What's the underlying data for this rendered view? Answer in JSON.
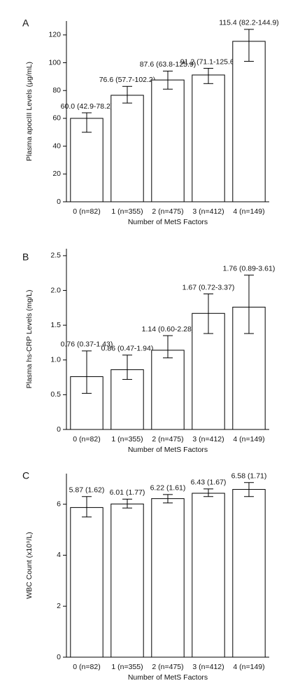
{
  "chart_data": [
    {
      "type": "bar",
      "title": "A",
      "y_label": "Plasma apocIII Levels (μg/mL)",
      "x_label": "Number of MetS Factors",
      "categories": [
        "0 (n=82)",
        "1 (n=355)",
        "2 (n=475)",
        "3 (n=412)",
        "4 (n=149)"
      ],
      "values": [
        60.0,
        76.6,
        87.6,
        91.2,
        115.4
      ],
      "value_labels": [
        "60.0 (42.9-78.2)",
        "76.6 (57.7-102.2)",
        "87.6 (63.8-125.9)",
        "91.2 (71.1-125.6)",
        "115.4 (82.2-144.9)"
      ],
      "errors_lower": [
        50,
        71,
        81,
        85,
        101
      ],
      "errors_upper": [
        64,
        83,
        94,
        96,
        124
      ],
      "color": "#ffffff",
      "ylim": [
        0,
        130
      ],
      "yticks": [
        0,
        20,
        40,
        60,
        80,
        100,
        120
      ]
    },
    {
      "type": "bar",
      "title": "B",
      "y_label": "Plasma hs-CRP Levels (mg/L)",
      "x_label": "Number of MetS Factors",
      "categories": [
        "0 (n=82)",
        "1 (n=355)",
        "2 (n=475)",
        "3 (n=412)",
        "4 (n=149)"
      ],
      "values": [
        0.76,
        0.86,
        1.14,
        1.67,
        1.76
      ],
      "value_labels": [
        "0.76 (0.37-1.43)",
        "0.86 (0.47-1.94)",
        "1.14 (0.60-2.28)",
        "1.67 (0.72-3.37)",
        "1.76 (0.89-3.61)"
      ],
      "errors_lower": [
        0.52,
        0.72,
        1.03,
        1.38,
        1.38
      ],
      "errors_upper": [
        1.13,
        1.07,
        1.35,
        1.95,
        2.22
      ],
      "color": "#ffffff",
      "ylim": [
        0,
        2.6
      ],
      "yticks": [
        0,
        0.5,
        {
          "value": 1,
          "label": "1.0"
        },
        1.5,
        {
          "value": 2,
          "label": "2.0"
        },
        2.5
      ]
    },
    {
      "type": "bar",
      "title": "C",
      "y_label": "WBC Count (x10⁹/L)",
      "x_label": "Number of MetS Factors",
      "categories": [
        "0 (n=82)",
        "1 (n=355)",
        "2 (n=475)",
        "3 (n=412)",
        "4 (n=149)"
      ],
      "values": [
        5.87,
        6.01,
        6.22,
        6.43,
        6.58
      ],
      "value_labels": [
        "5.87 (1.62)",
        "6.01 (1.77)",
        "6.22 (1.61)",
        "6.43 (1.67)",
        "6.58 (1.71)"
      ],
      "errors_lower": [
        5.5,
        5.85,
        6.05,
        6.3,
        6.3
      ],
      "errors_upper": [
        6.3,
        6.2,
        6.38,
        6.6,
        6.85
      ],
      "color": "#ffffff",
      "ylim": [
        0,
        7.2
      ],
      "yticks": [
        0,
        2,
        4,
        6
      ]
    }
  ]
}
